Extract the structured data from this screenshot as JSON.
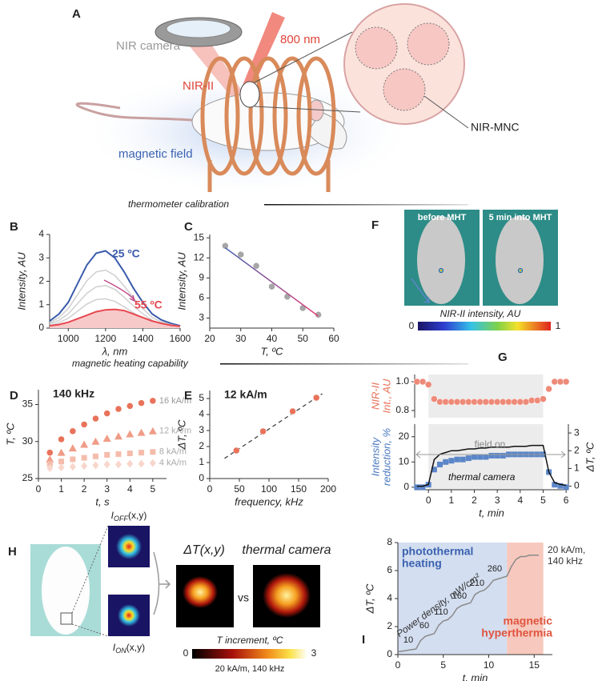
{
  "figure": {
    "panel_A": {
      "label": "A",
      "nir_camera": "NIR camera",
      "laser": "800 nm",
      "nir_ii": "NIR-II",
      "magnetic_field": "magnetic field",
      "particle": "NIR-MNC"
    },
    "section_1": "thermometer calibration",
    "section_2": "magnetic heating capability",
    "panel_F": {
      "label": "F",
      "left_image": "before MHT",
      "right_image": "5 min into MHT",
      "colorbar_title": "NIR-II intensity, AU",
      "colorbar_ticks": [
        0,
        1
      ]
    },
    "panel_H": {
      "label": "H",
      "off": {
        "symbol": "I",
        "sub": "OFF",
        "args": "(x,y)"
      },
      "on": {
        "symbol": "I",
        "sub": "ON",
        "args": "(x,y)"
      },
      "delta": "ΔT(x,y)",
      "vs": "vs",
      "thermal": "thermal camera",
      "colorbar_title": "T increment, ºC",
      "colorbar_ticks": [
        0,
        3
      ],
      "colorbar_note": "20 kA/m, 140 kHz"
    }
  },
  "chart_data": [
    {
      "type": "line",
      "panel": "B",
      "xlabel": "λ, nm",
      "ylabel": [
        "Intensity, AU"
      ],
      "x": [
        900,
        950,
        1000,
        1050,
        1100,
        1150,
        1200,
        1250,
        1300,
        1350,
        1400,
        1450,
        1500,
        1550,
        1600
      ],
      "xlim": [
        900,
        1600
      ],
      "ylim": [
        0,
        4
      ],
      "xticks": [
        1000,
        1200,
        1400,
        1600
      ],
      "yticks": [
        0,
        1,
        2,
        3,
        4
      ],
      "series": [
        {
          "name": "25 ºC",
          "color": "#3b5bab",
          "values": [
            0.3,
            0.6,
            1.1,
            1.9,
            2.7,
            3.2,
            3.3,
            3.0,
            2.4,
            1.7,
            1.1,
            0.6,
            0.35,
            0.2,
            0.1
          ]
        },
        {
          "color": "#cfcfcf",
          "values": [
            0.23,
            0.45,
            0.83,
            1.43,
            2.03,
            2.4,
            2.48,
            2.25,
            1.8,
            1.28,
            0.83,
            0.45,
            0.26,
            0.15,
            0.08
          ]
        },
        {
          "color": "#cfcfcf",
          "values": [
            0.17,
            0.33,
            0.61,
            1.05,
            1.49,
            1.76,
            1.82,
            1.65,
            1.32,
            0.94,
            0.61,
            0.33,
            0.19,
            0.11,
            0.06
          ]
        },
        {
          "color": "#cfcfcf",
          "values": [
            0.11,
            0.23,
            0.42,
            0.72,
            1.03,
            1.22,
            1.25,
            1.14,
            0.91,
            0.65,
            0.42,
            0.23,
            0.13,
            0.08,
            0.04
          ]
        },
        {
          "name": "55 ºC",
          "color": "#e8474f",
          "fill": "#f7caca",
          "values": [
            0.1,
            0.15,
            0.25,
            0.4,
            0.55,
            0.7,
            0.78,
            0.8,
            0.75,
            0.6,
            0.45,
            0.3,
            0.2,
            0.12,
            0.08
          ]
        }
      ]
    },
    {
      "type": "scatter",
      "panel": "C",
      "xlabel": "T, ºC",
      "ylabel": [
        "Intensity, AU"
      ],
      "xlim": [
        20,
        60
      ],
      "ylim": [
        1.5,
        15.5
      ],
      "xticks": [
        20,
        30,
        40,
        50,
        60
      ],
      "yticks": [
        3,
        6,
        9,
        12,
        15
      ],
      "series": [
        {
          "x": [
            25,
            30,
            35,
            40,
            45,
            50,
            55
          ],
          "values": [
            13.8,
            12.5,
            10.8,
            7.7,
            6.2,
            4.5,
            3.5
          ],
          "color": "#a6a6a6",
          "marker": "circle"
        },
        {
          "x": [
            25,
            55
          ],
          "values": [
            13.5,
            3.3
          ],
          "style": "line",
          "gradient": [
            "#3b5bab",
            "#e8407a"
          ]
        }
      ]
    },
    {
      "type": "scatter",
      "panel": "D",
      "title": "140 kHz",
      "xlabel": "t, s",
      "ylabel": [
        "T, ºC"
      ],
      "x": [
        0.5,
        1,
        1.5,
        2,
        2.5,
        3,
        3.5,
        4,
        4.5,
        5
      ],
      "xlim": [
        0,
        5.6
      ],
      "ylim": [
        25,
        37
      ],
      "xticks": [
        0,
        1,
        2,
        3,
        4,
        5
      ],
      "yticks": [
        25,
        30,
        35
      ],
      "series": [
        {
          "name": "16 kA/m",
          "color": "#e8735a",
          "marker": "circle",
          "values": [
            28.5,
            30.3,
            31.4,
            32.3,
            33.1,
            33.8,
            34.4,
            34.8,
            35.2,
            35.5
          ]
        },
        {
          "name": "12 kA/m",
          "color": "#f09c86",
          "marker": "triangle",
          "values": [
            27.6,
            28.5,
            29.1,
            29.6,
            30,
            30.4,
            30.7,
            31,
            31.2,
            31.4
          ]
        },
        {
          "name": "8 kA/m",
          "color": "#f4bcab",
          "marker": "square",
          "values": [
            27,
            27.3,
            27.6,
            27.8,
            28,
            28.2,
            28.3,
            28.4,
            28.5,
            28.6
          ]
        },
        {
          "name": "4 kA/m",
          "color": "#f8d6cc",
          "marker": "diamond",
          "values": [
            26.4,
            26.5,
            26.6,
            26.7,
            26.8,
            26.9,
            26.9,
            27,
            27,
            27.1
          ]
        }
      ]
    },
    {
      "type": "scatter",
      "panel": "E",
      "title": "12 kA/m",
      "xlabel": "frequency, kHz",
      "ylabel": [
        "ΔT, ºC"
      ],
      "xlim": [
        0,
        200
      ],
      "ylim": [
        0,
        5.5
      ],
      "xticks": [
        0,
        50,
        100,
        150,
        200
      ],
      "yticks": [
        0,
        1,
        2,
        3,
        4,
        5
      ],
      "series": [
        {
          "x": [
            25,
            190
          ],
          "values": [
            1.26,
            5.3
          ],
          "style": "dashed",
          "color": "#444444"
        },
        {
          "x": [
            45,
            90,
            140,
            180
          ],
          "values": [
            1.75,
            2.95,
            4.2,
            5.05
          ],
          "color": "#e8735a",
          "marker": "circle"
        }
      ]
    },
    {
      "type": "scatter",
      "panel": "G",
      "ylabel": [
        "NIR-II",
        "Int., AU"
      ],
      "ylabel_color": "#e8735a",
      "x": [
        -0.5,
        -0.25,
        0,
        0.25,
        0.5,
        0.75,
        1,
        1.25,
        1.5,
        1.75,
        2,
        2.25,
        2.5,
        2.75,
        3,
        3.25,
        3.5,
        3.75,
        4,
        4.25,
        4.5,
        4.75,
        5,
        5.25,
        5.5,
        5.75,
        6
      ],
      "xlim": [
        -0.6,
        6.1
      ],
      "ylim": [
        0.75,
        1.05
      ],
      "yticks": [
        0.8,
        {
          "value": 1,
          "label": "1.0"
        }
      ],
      "regions": [
        {
          "xlim": [
            0,
            5
          ],
          "color": "#ececec"
        }
      ],
      "series": [
        {
          "color": "#ee8a78",
          "marker": "circle",
          "values": [
            1.0,
            1.0,
            0.98,
            0.88,
            0.86,
            0.86,
            0.86,
            0.86,
            0.86,
            0.86,
            0.86,
            0.86,
            0.86,
            0.86,
            0.86,
            0.86,
            0.86,
            0.86,
            0.86,
            0.86,
            0.87,
            0.87,
            0.88,
            0.95,
            1.0,
            1.0,
            1.0
          ]
        }
      ]
    },
    {
      "type": "scatter",
      "xlabel": "t, min",
      "ylabel": [
        "Intensity",
        "reduction, %"
      ],
      "ylabel_color": "#4a78c0",
      "y2label": "ΔT, ºC",
      "x": [
        -0.5,
        -0.25,
        0,
        0.25,
        0.5,
        0.75,
        1,
        1.25,
        1.5,
        1.75,
        2,
        2.25,
        2.5,
        2.75,
        3,
        3.25,
        3.5,
        3.75,
        4,
        4.25,
        4.5,
        4.75,
        5,
        5.25,
        5.5,
        5.75,
        6
      ],
      "xlim": [
        -0.6,
        6.1
      ],
      "ylim": [
        -1,
        25
      ],
      "y2lim": [
        -0.2,
        3.5
      ],
      "xticks": [
        0,
        1,
        2,
        3,
        4,
        5,
        6
      ],
      "yticks": [
        0,
        10,
        20
      ],
      "y2ticks": [
        0,
        1,
        2,
        3
      ],
      "regions": [
        {
          "xlim": [
            0,
            5
          ],
          "color": "#ececec"
        }
      ],
      "annotations": [
        {
          "text": "field on",
          "color": "#888888"
        },
        {
          "text": "thermal camera",
          "color": "#111111"
        }
      ],
      "series": [
        {
          "color": "#5b86c8",
          "marker": "square",
          "values": [
            0,
            0,
            1,
            7,
            9,
            10,
            10.5,
            11,
            11,
            11.5,
            12,
            12,
            12,
            12.5,
            12.5,
            12.5,
            13,
            13,
            13,
            13,
            13,
            13,
            13,
            6,
            1,
            0.5,
            0
          ]
        },
        {
          "color": "#111111",
          "style": "line",
          "axis": "y2",
          "values": [
            0,
            0,
            0.1,
            1.5,
            1.8,
            1.9,
            2.0,
            2.0,
            2.05,
            2.1,
            2.1,
            2.15,
            2.15,
            2.2,
            2.2,
            2.2,
            2.2,
            2.25,
            2.25,
            2.25,
            2.3,
            2.3,
            2.3,
            0.8,
            0.2,
            0.1,
            0.05
          ]
        }
      ]
    },
    {
      "type": "line",
      "panel": "I",
      "xlabel": "t, min",
      "ylabel": [
        "ΔT, ºC"
      ],
      "x": [
        0,
        0.5,
        1,
        1.5,
        2,
        2.5,
        3,
        3.5,
        4,
        4.5,
        5,
        5.5,
        6,
        6.5,
        7,
        7.5,
        8,
        8.5,
        9,
        9.5,
        10,
        10.5,
        11,
        11.5,
        12,
        12.5,
        13,
        13.5,
        14,
        14.5,
        15,
        15.5
      ],
      "xlim": [
        0,
        17
      ],
      "ylim": [
        0,
        8
      ],
      "xticks": [
        0,
        5,
        10,
        15
      ],
      "yticks": [
        0,
        2,
        4,
        6,
        8
      ],
      "regions": [
        {
          "xlim": [
            0,
            12
          ],
          "color": "#d3def0"
        },
        {
          "xlim": [
            12,
            16
          ],
          "color": "#f7c8bd"
        }
      ],
      "annotations": [
        {
          "text": "photothermal",
          "color": "#3b62b0"
        },
        {
          "text": "heating",
          "color": "#3b62b0"
        },
        {
          "text": "magnetic",
          "color": "#e0553f"
        },
        {
          "text": "hyperthermia",
          "color": "#e0553f"
        },
        {
          "text": "Power density, mW/cm²",
          "color": "#333333"
        },
        {
          "text": "20 kA/m,",
          "color": "#333333"
        },
        {
          "text": "140 kHz",
          "color": "#333333"
        }
      ],
      "power_densities": [
        10,
        60,
        110,
        160,
        210,
        260
      ],
      "series": [
        {
          "color": "#8a8a8a",
          "style": "line",
          "values": [
            0.2,
            0.25,
            0.3,
            0.35,
            0.4,
            1.0,
            1.3,
            1.4,
            1.5,
            2.1,
            2.4,
            2.5,
            2.8,
            3.3,
            3.5,
            3.6,
            3.7,
            4.3,
            4.5,
            4.6,
            4.9,
            5.3,
            5.4,
            5.5,
            5.6,
            6.3,
            6.8,
            7.0,
            7.0,
            7.1,
            7.1,
            7.1
          ]
        }
      ]
    }
  ]
}
